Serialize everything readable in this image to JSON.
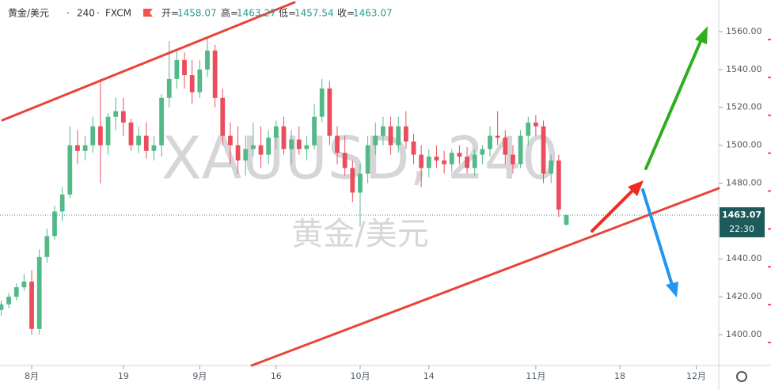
{
  "header": {
    "symbol": "黄金/美元",
    "interval": "240",
    "exchange": "FXCM",
    "open_label": "开=",
    "high_label": "高=",
    "low_label": "低=",
    "close_label": "收="
  },
  "countdown": "22:30",
  "chart_data": {
    "type": "candlestick",
    "watermark": "XAUUSD, 240",
    "watermark_sub": "黄金/美元",
    "x": [
      -4,
      -3,
      -2,
      -1,
      0,
      1,
      2,
      3,
      4,
      5,
      6,
      7,
      8,
      9,
      10,
      11,
      12,
      13,
      14,
      15,
      16,
      17,
      18,
      19,
      20,
      21,
      22,
      23,
      24,
      25,
      26,
      27,
      28,
      29,
      30,
      31,
      32,
      33,
      34,
      35,
      36,
      37,
      38,
      39,
      40,
      41,
      42,
      43,
      44,
      45,
      46,
      47,
      48,
      49,
      50,
      51,
      52,
      53,
      54,
      55,
      56,
      57,
      58,
      59,
      60,
      61,
      62,
      63,
      64,
      65,
      66,
      67,
      68,
      69,
      70
    ],
    "open": [
      1413,
      1416,
      1420,
      1425,
      1428,
      1403,
      1441,
      1452,
      1465,
      1474,
      1500,
      1497,
      1500,
      1510,
      1500,
      1515,
      1518,
      1512,
      1500,
      1505,
      1497,
      1500,
      1525,
      1535,
      1545,
      1537,
      1528,
      1540,
      1550,
      1525,
      1505,
      1500,
      1492,
      1498,
      1500,
      1495,
      1504,
      1510,
      1498,
      1503,
      1498,
      1500,
      1515,
      1530,
      1505,
      1496,
      1488,
      1475,
      1485,
      1500,
      1505,
      1510,
      1500,
      1510,
      1502,
      1495,
      1488,
      1494,
      1492,
      1490,
      1496,
      1494,
      1488,
      1495,
      1498,
      1505,
      1504,
      1495,
      1490,
      1505,
      1512,
      1510,
      1485,
      1492,
      1458.07
    ],
    "high": [
      1418,
      1422,
      1427,
      1432,
      1434,
      1445,
      1456,
      1468,
      1478,
      1510,
      1508,
      1505,
      1515,
      1535,
      1517,
      1525,
      1525,
      1514,
      1510,
      1512,
      1505,
      1527,
      1555,
      1550,
      1549,
      1545,
      1545,
      1557,
      1553,
      1530,
      1512,
      1510,
      1505,
      1512,
      1510,
      1508,
      1513,
      1515,
      1508,
      1510,
      1505,
      1522,
      1535,
      1534,
      1510,
      1505,
      1492,
      1490,
      1505,
      1512,
      1515,
      1515,
      1515,
      1518,
      1506,
      1500,
      1498,
      1500,
      1497,
      1498,
      1500,
      1499,
      1498,
      1500,
      1510,
      1518,
      1508,
      1500,
      1508,
      1515,
      1516,
      1513,
      1495,
      1495,
      1463.27
    ],
    "low": [
      1410,
      1414,
      1418,
      1423,
      1400,
      1400,
      1438,
      1450,
      1460,
      1472,
      1490,
      1492,
      1496,
      1480,
      1495,
      1508,
      1505,
      1497,
      1496,
      1493,
      1492,
      1494,
      1520,
      1530,
      1530,
      1522,
      1525,
      1536,
      1520,
      1500,
      1490,
      1485,
      1484,
      1494,
      1488,
      1490,
      1498,
      1495,
      1490,
      1495,
      1492,
      1498,
      1512,
      1500,
      1490,
      1484,
      1470,
      1457,
      1480,
      1495,
      1500,
      1495,
      1496,
      1498,
      1490,
      1478,
      1483,
      1488,
      1485,
      1486,
      1490,
      1485,
      1484,
      1490,
      1494,
      1500,
      1490,
      1485,
      1488,
      1500,
      1505,
      1480,
      1480,
      1462,
      1457.54
    ],
    "close": [
      1416,
      1420,
      1425,
      1428,
      1403,
      1441,
      1452,
      1465,
      1474,
      1500,
      1497,
      1500,
      1510,
      1500,
      1515,
      1518,
      1512,
      1500,
      1505,
      1497,
      1500,
      1525,
      1535,
      1545,
      1537,
      1528,
      1540,
      1550,
      1525,
      1505,
      1500,
      1492,
      1498,
      1500,
      1495,
      1504,
      1510,
      1498,
      1503,
      1498,
      1500,
      1515,
      1530,
      1505,
      1496,
      1488,
      1475,
      1485,
      1500,
      1505,
      1510,
      1500,
      1510,
      1502,
      1495,
      1488,
      1494,
      1492,
      1490,
      1496,
      1494,
      1488,
      1495,
      1498,
      1505,
      1504,
      1495,
      1490,
      1505,
      1512,
      1510,
      1485,
      1492,
      1466,
      1463.07
    ],
    "up_color": "#53b987",
    "down_color": "#eb4d5c",
    "xlim": [
      -4.15,
      89.95
    ],
    "xticks": [
      {
        "value": 0,
        "label": "8月"
      },
      {
        "value": 12,
        "label": "19"
      },
      {
        "value": 22,
        "label": "9月"
      },
      {
        "value": 32,
        "label": "16"
      },
      {
        "value": 43,
        "label": "10月"
      },
      {
        "value": 52,
        "label": "14"
      },
      {
        "value": 66,
        "label": "11月"
      },
      {
        "value": 77,
        "label": "18"
      },
      {
        "value": 87,
        "label": "12月"
      }
    ],
    "ylim": [
      1383.7,
      1576.7
    ],
    "yticks": [
      {
        "value": 1400,
        "label": "1400.00"
      },
      {
        "value": 1420,
        "label": "1420.00"
      },
      {
        "value": 1440,
        "label": "1440.00"
      },
      {
        "value": 1460,
        "label": "1460.00"
      },
      {
        "value": 1480,
        "label": "1480.00"
      },
      {
        "value": 1500,
        "label": "1500.00"
      },
      {
        "value": 1520,
        "label": "1520.00"
      },
      {
        "value": 1540,
        "label": "1540.00"
      },
      {
        "value": 1560,
        "label": "1560.00"
      }
    ]
  }
}
